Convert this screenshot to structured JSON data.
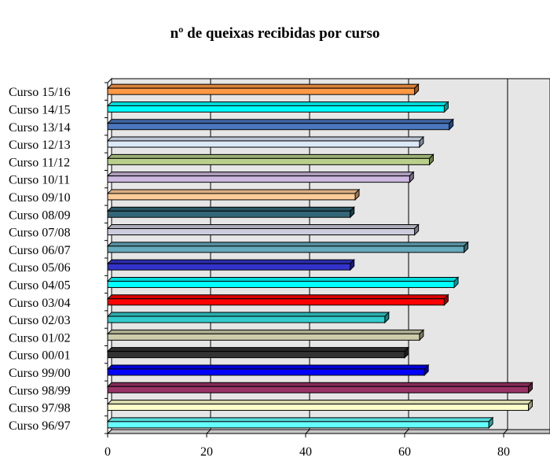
{
  "chart_data": {
    "type": "bar",
    "orientation": "horizontal",
    "style": "3d",
    "title": "nº de queixas recibidas por curso",
    "xlabel": "",
    "ylabel": "",
    "xlim": [
      0,
      90
    ],
    "xticks": [
      0,
      20,
      40,
      60,
      80
    ],
    "grid": true,
    "legend": "none",
    "categories": [
      "Curso 96/97",
      "Curso 97/98",
      "Curso 98/99",
      "Curso 99/00",
      "Curso 00/01",
      "Curso 01/02",
      "Curso 02/03",
      "Curso 03/04",
      "Curso 04/05",
      "Curso 05/06",
      "Curso 06/07",
      "Curso 07/08",
      "Curso 08/09",
      "Curso 09/10",
      "Curso 10/11",
      "Curso 11/12",
      "Curso 12/13",
      "Curso 13/14",
      "Curso 14/15",
      "Curso 15/16"
    ],
    "values": [
      77,
      85,
      85,
      64,
      60,
      63,
      56,
      68,
      70,
      49,
      72,
      62,
      49,
      50,
      61,
      65,
      63,
      69,
      68,
      62
    ],
    "colors": [
      "#66ffff",
      "#ffffcc",
      "#993366",
      "#0000ff",
      "#333333",
      "#ccccaa",
      "#33cccc",
      "#ff0000",
      "#00ffff",
      "#3333cc",
      "#66aabb",
      "#ccccdd",
      "#336677",
      "#ffcc99",
      "#ccb8e0",
      "#b8d08a",
      "#dce8f8",
      "#4a77c0",
      "#00ffff",
      "#ff9944"
    ]
  }
}
